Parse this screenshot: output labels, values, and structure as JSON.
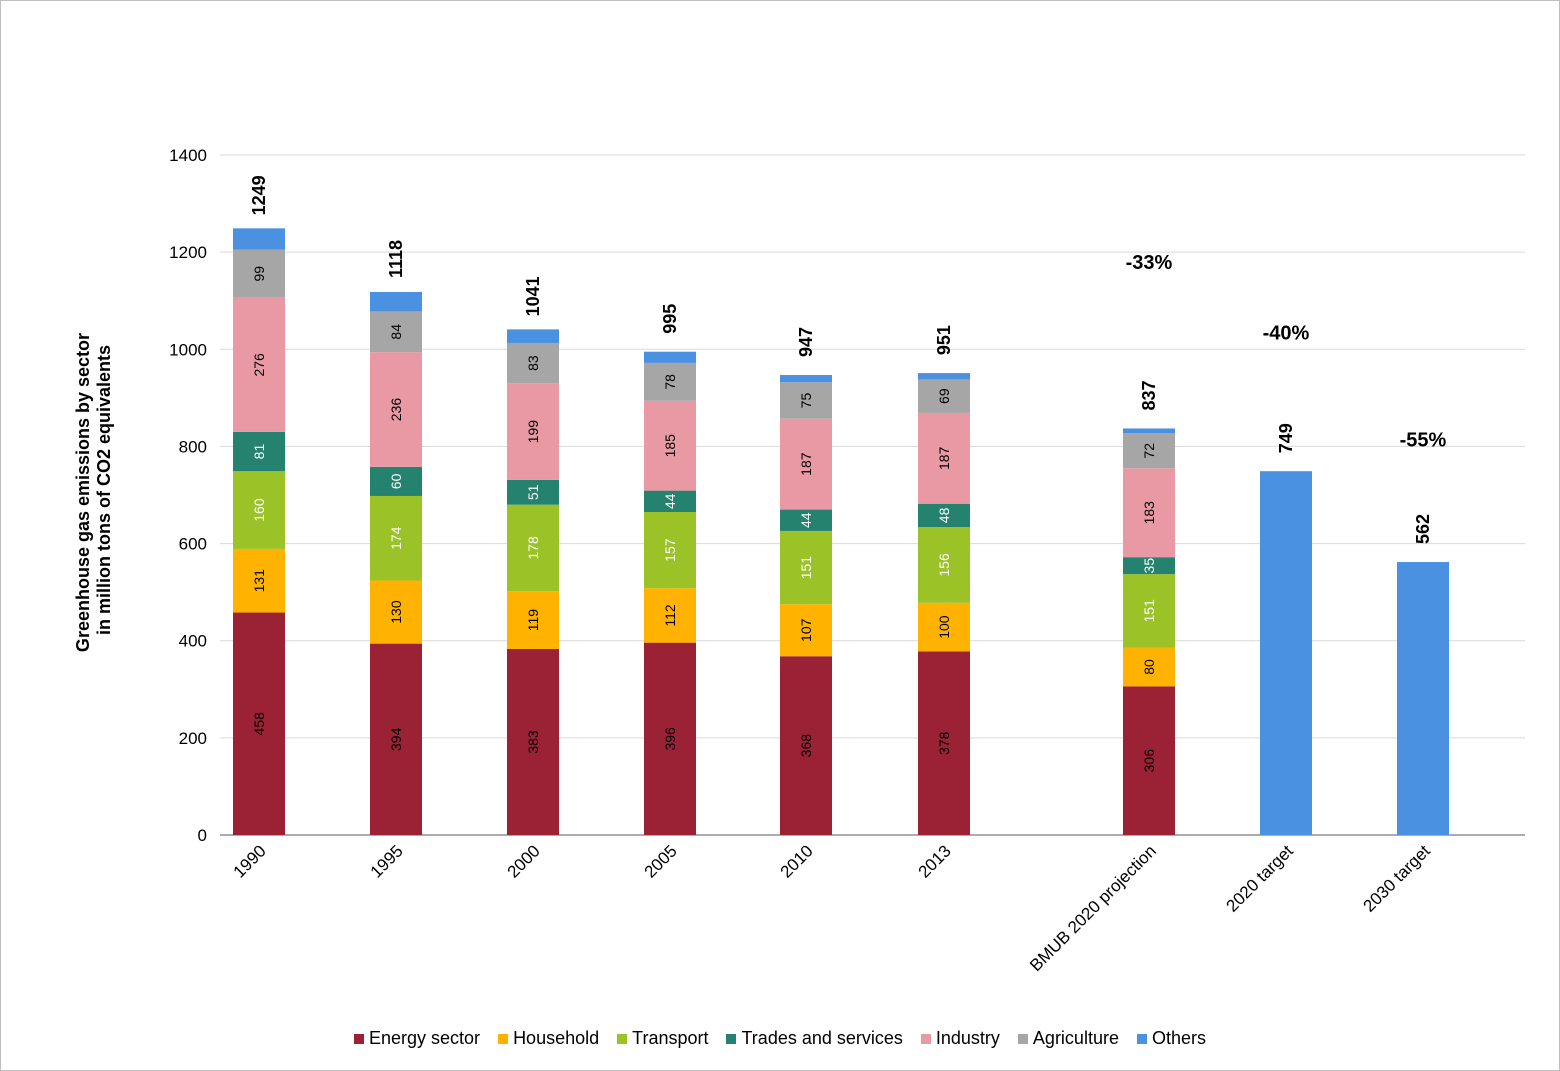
{
  "chart_data": {
    "type": "bar",
    "stacked": true,
    "title": "",
    "ylabel": "Greenhouse gas emissions by sector in million tons of CO2 equivalents",
    "ylabel_lines": [
      "Greenhouse gas emissions by sector",
      "in million tons of CO2 equivalents"
    ],
    "xlabel": "",
    "ylim": [
      0,
      1400
    ],
    "yticks": [
      0,
      200,
      400,
      600,
      800,
      1000,
      1200,
      1400
    ],
    "grid": true,
    "legend_position": "bottom",
    "categories": [
      "1990",
      "1995",
      "2000",
      "2005",
      "2010",
      "2013",
      "BMUB 2020 projection",
      "2020 target",
      "2030 target"
    ],
    "series": [
      {
        "name": "Energy sector",
        "color": "#9b2235",
        "label_color": "#000000",
        "values": [
          458,
          394,
          383,
          396,
          368,
          378,
          306,
          null,
          null
        ]
      },
      {
        "name": "Household",
        "color": "#ffb300",
        "label_color": "#000000",
        "values": [
          131,
          130,
          119,
          112,
          107,
          100,
          80,
          null,
          null
        ]
      },
      {
        "name": "Transport",
        "color": "#9bc328",
        "label_color": "#ffffff",
        "values": [
          160,
          174,
          178,
          157,
          151,
          156,
          151,
          null,
          null
        ]
      },
      {
        "name": "Trades and services",
        "color": "#24826e",
        "label_color": "#ffffff",
        "values": [
          81,
          60,
          51,
          44,
          44,
          48,
          35,
          null,
          null
        ]
      },
      {
        "name": "Industry",
        "color": "#e899a3",
        "label_color": "#000000",
        "values": [
          276,
          236,
          199,
          185,
          187,
          187,
          183,
          null,
          null
        ]
      },
      {
        "name": "Agriculture",
        "color": "#a6a6a6",
        "label_color": "#000000",
        "values": [
          99,
          84,
          83,
          78,
          75,
          69,
          72,
          null,
          null
        ]
      },
      {
        "name": "Others",
        "color": "#4a91e2",
        "label_color": "#000000",
        "values": [
          44,
          40,
          28,
          23,
          15,
          13,
          10,
          749,
          562
        ]
      }
    ],
    "totals": [
      1249,
      1118,
      1041,
      995,
      947,
      951,
      837,
      749,
      562
    ],
    "percent_annotations": [
      {
        "category": "BMUB 2020 projection",
        "label": "-33%"
      },
      {
        "category": "2020 target",
        "label": "-40%"
      },
      {
        "category": "2030 target",
        "label": "-55%"
      }
    ]
  }
}
